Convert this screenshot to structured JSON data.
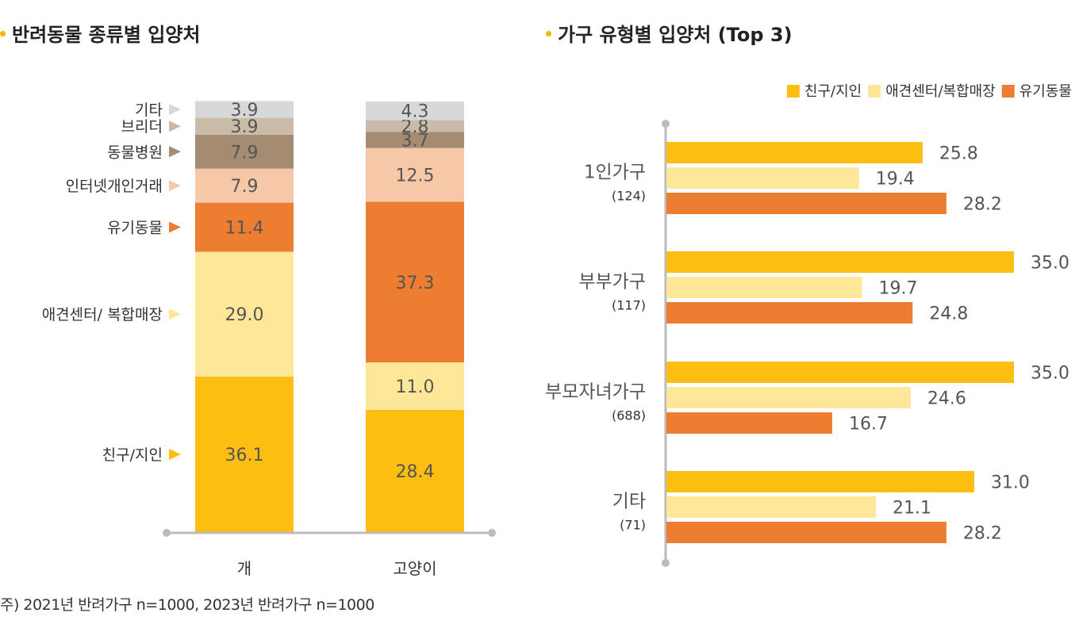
{
  "titles": {
    "left": "반려동물 종류별 입양처",
    "right": "가구 유형별 입양처 (Top 3)"
  },
  "footnote": "주) 2021년 반려가구 n=1000, 2023년 반려가구 n=1000",
  "colors": {
    "friend": "#FDBE12",
    "center": "#FFE79A",
    "shop": "#ED7D31",
    "internet": "#F6C8A8",
    "hospital": "#A48B72",
    "breeder": "#C9BBA8",
    "other": "#D7D8DA",
    "axis": "#BBBBBB",
    "dot": "#F5B800"
  },
  "chart_data": [
    {
      "type": "bar",
      "stacked": true,
      "orientation": "vertical",
      "title": "반려동물 종류별 입양처",
      "categories": [
        "개",
        "고양이"
      ],
      "series": [
        {
          "name": "친구/지인",
          "values": [
            36.1,
            28.4
          ],
          "color_key": "friend"
        },
        {
          "name": "애견센터/ 복합매장",
          "values": [
            29.0,
            11.0
          ],
          "color_key": "center"
        },
        {
          "name": "유기동물",
          "values": [
            11.4,
            37.3
          ],
          "color_key": "shop"
        },
        {
          "name": "인터넷개인거래",
          "values": [
            7.9,
            12.5
          ],
          "color_key": "internet"
        },
        {
          "name": "동물병원",
          "values": [
            7.9,
            3.7
          ],
          "color_key": "hospital"
        },
        {
          "name": "브리더",
          "values": [
            3.9,
            2.8
          ],
          "color_key": "breeder"
        },
        {
          "name": "기타",
          "values": [
            3.9,
            4.3
          ],
          "color_key": "other"
        }
      ],
      "ylim": [
        0,
        100
      ],
      "grid": false
    },
    {
      "type": "bar",
      "orientation": "horizontal",
      "title": "가구 유형별 입양처 (Top 3)",
      "categories": [
        "1인가구",
        "부부가구",
        "부모자녀가구",
        "기타"
      ],
      "category_n": [
        "(124)",
        "(117)",
        "(688)",
        "(71)"
      ],
      "series": [
        {
          "name": "친구/지인",
          "values": [
            25.8,
            35.0,
            35.0,
            31.0
          ],
          "color_key": "friend"
        },
        {
          "name": "애견센터/복합매장",
          "values": [
            19.4,
            19.7,
            24.6,
            21.1
          ],
          "color_key": "center"
        },
        {
          "name": "유기동물",
          "values": [
            28.2,
            24.8,
            16.7,
            28.2
          ],
          "color_key": "shop"
        }
      ],
      "legend_position": "top-right",
      "xlim": [
        0,
        35
      ],
      "grid": false
    }
  ]
}
